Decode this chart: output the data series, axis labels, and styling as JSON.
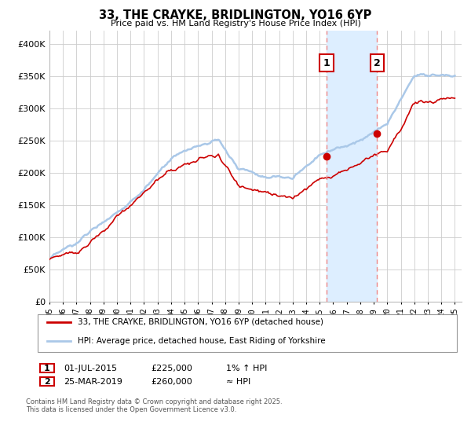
{
  "title": "33, THE CRAYKE, BRIDLINGTON, YO16 6YP",
  "subtitle": "Price paid vs. HM Land Registry's House Price Index (HPI)",
  "legend_line1": "33, THE CRAYKE, BRIDLINGTON, YO16 6YP (detached house)",
  "legend_line2": "HPI: Average price, detached house, East Riding of Yorkshire",
  "annotation1_date": "01-JUL-2015",
  "annotation1_price": "£225,000",
  "annotation1_hpi": "1% ↑ HPI",
  "annotation2_date": "25-MAR-2019",
  "annotation2_price": "£260,000",
  "annotation2_hpi": "≈ HPI",
  "footer": "Contains HM Land Registry data © Crown copyright and database right 2025.\nThis data is licensed under the Open Government Licence v3.0.",
  "hpi_line_color": "#aac8e8",
  "price_line_color": "#cc0000",
  "annotation_vline_color": "#ee8888",
  "shaded_region_color": "#ddeeff",
  "background_color": "#ffffff",
  "grid_color": "#cccccc",
  "ylim": [
    0,
    420000
  ],
  "yticks": [
    0,
    50000,
    100000,
    150000,
    200000,
    250000,
    300000,
    350000,
    400000
  ],
  "sale1_x": 2015.5,
  "sale1_y": 225000,
  "sale2_x": 2019.25,
  "sale2_y": 260000,
  "xmin": 1995,
  "xmax": 2025.5
}
